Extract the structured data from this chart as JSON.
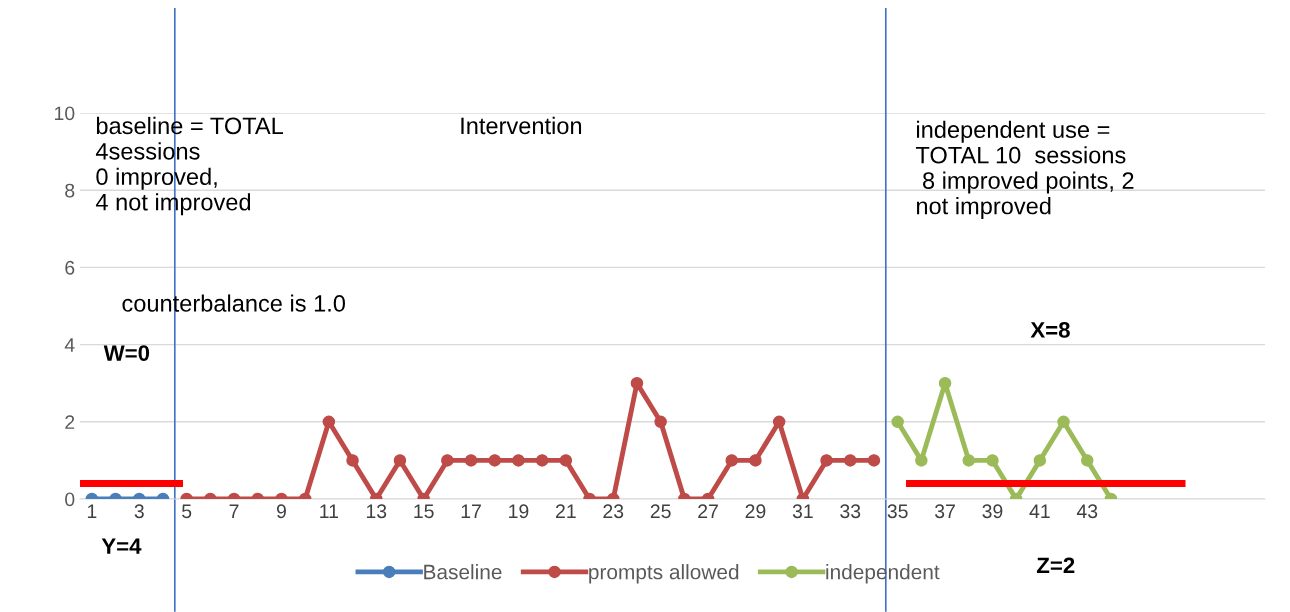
{
  "chart_data": {
    "type": "line",
    "xlim": [
      0.5,
      50.5
    ],
    "xticks": [
      1,
      3,
      5,
      7,
      9,
      11,
      13,
      15,
      17,
      19,
      21,
      23,
      25,
      27,
      29,
      31,
      33,
      35,
      37,
      39,
      41,
      43
    ],
    "ylim": [
      0,
      10
    ],
    "yticks": [
      0,
      2,
      4,
      6,
      8,
      10
    ],
    "grid": "y",
    "marker": "circle",
    "legend": "bottom",
    "series": [
      {
        "name": "Baseline",
        "color": "#4a7ebb",
        "x": [
          1,
          2,
          3,
          4
        ],
        "values": [
          0,
          0,
          0,
          0
        ]
      },
      {
        "name": "prompts allowed",
        "color": "#be4b48",
        "x": [
          5,
          6,
          7,
          8,
          9,
          10,
          11,
          12,
          13,
          14,
          15,
          16,
          17,
          18,
          19,
          20,
          21,
          22,
          23,
          24,
          25,
          26,
          27,
          28,
          29,
          30,
          31,
          32,
          33,
          34
        ],
        "values": [
          0,
          0,
          0,
          0,
          0,
          0,
          2,
          1,
          0,
          1,
          0,
          1,
          1,
          1,
          1,
          1,
          1,
          0,
          0,
          3,
          2,
          0,
          0,
          1,
          1,
          2,
          0,
          1,
          1,
          1
        ]
      },
      {
        "name": "independent",
        "color": "#9bbb59",
        "x": [
          35,
          36,
          37,
          38,
          39,
          40,
          41,
          42,
          43,
          44
        ],
        "values": [
          2,
          1,
          3,
          1,
          1,
          0,
          1,
          2,
          1,
          0
        ]
      },
      {
        "color": "#ff0000",
        "marker": "none",
        "x": [
          0.5,
          4.7
        ],
        "values": [
          0.4,
          0.4
        ]
      },
      {
        "color": "#ff0000",
        "marker": "none",
        "x": [
          35.5,
          47
        ],
        "values": [
          0.4,
          0.4
        ]
      }
    ],
    "ref_lines": [
      {
        "axis": "x",
        "value": 4.5,
        "color": "#4472c4"
      },
      {
        "axis": "x",
        "value": 34.5,
        "color": "#4472c4"
      }
    ],
    "annotations": [
      "baseline = TOTAL\n4sessions\n0 improved,\n4 not improved",
      "Intervention",
      "independent use =\nTOTAL 10  sessions\n 8 improved points, 2\nnot improved",
      "counterbalance is 1.0",
      "W=0",
      "X=8",
      "Y=4",
      "Z=2"
    ]
  }
}
